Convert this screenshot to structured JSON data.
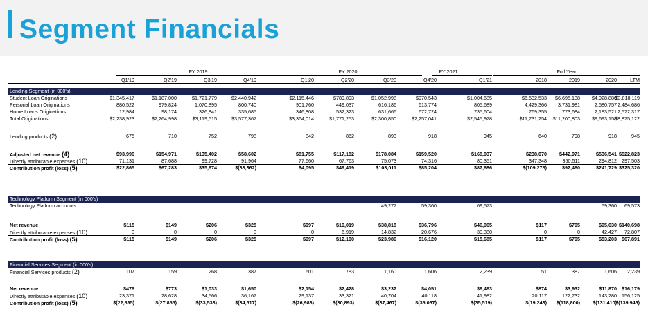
{
  "title": "Segment Financials",
  "periods": [
    {
      "label": "FY 2019"
    },
    {
      "label": "FY 2020"
    },
    {
      "label": "FY 2021"
    },
    {
      "label": "Full Year"
    }
  ],
  "columns": [
    "Q1'19",
    "Q2'19",
    "Q3'19",
    "Q4'19",
    "Q1'20",
    "Q2'20",
    "Q3'20",
    "Q4'20",
    "Q1'21",
    "2018",
    "2019",
    "2020",
    "LTM"
  ],
  "lending": {
    "header": "Lending Segment (in 000's)",
    "rows": [
      {
        "label": "Student Loan Originations",
        "values": [
          "$1,345,417",
          "$1,187,000",
          "$1,721,779",
          "$2,440,942",
          "$2,115,446",
          "$789,893",
          "$1,052,998",
          "$970,543",
          "$1,004,685",
          "$6,532,533",
          "$6,695,138",
          "$4,928,880",
          "$3,818,119"
        ]
      },
      {
        "label": "Personal Loan Originations",
        "values": [
          "880,522",
          "979,824",
          "1,070,895",
          "800,740",
          "901,760",
          "449,037",
          "616,186",
          "613,774",
          "805,689",
          "4,429,366",
          "3,731,981",
          "2,580,757",
          "2,484,686"
        ]
      },
      {
        "label": "Home Loans Originations",
        "values": [
          "12,984",
          "98,174",
          "326,841",
          "335,685",
          "346,808",
          "532,323",
          "631,666",
          "672,724",
          "735,604",
          "769,355",
          "773,684",
          "2,183,521",
          "2,572,317"
        ]
      },
      {
        "label": "Total Originations",
        "values": [
          "$2,238,923",
          "$2,264,998",
          "$3,119,515",
          "$3,577,367",
          "$3,364,014",
          "$1,771,253",
          "$2,300,850",
          "$2,257,041",
          "$2,545,978",
          "$11,731,254",
          "$11,200,803",
          "$9,693,158",
          "$8,875,122"
        ]
      },
      {
        "label": "Lending products",
        "note": "(2)",
        "values": [
          "675",
          "710",
          "752",
          "798",
          "842",
          "862",
          "893",
          "918",
          "945",
          "640",
          "798",
          "918",
          "945"
        ]
      },
      {
        "label": "Adjusted net revenue",
        "note": "(4)",
        "values": [
          "$93,996",
          "$154,971",
          "$135,402",
          "$58,602",
          "$81,755",
          "$117,182",
          "$178,084",
          "$159,520",
          "$168,037",
          "$238,070",
          "$442,971",
          "$536,541",
          "$622,823"
        ]
      },
      {
        "label": "Directly attributable expenses",
        "note": "(10)",
        "values": [
          "71,131",
          "87,688",
          "99,728",
          "91,964",
          "77,660",
          "67,763",
          "75,073",
          "74,316",
          "80,351",
          "347,348",
          "350,511",
          "294,812",
          "297,503"
        ]
      },
      {
        "label": "Contribution profit (loss)",
        "note": "(5)",
        "values": [
          "$22,865",
          "$67,283",
          "$35,674",
          "$(33,362)",
          "$4,095",
          "$49,419",
          "$103,011",
          "$85,204",
          "$87,686",
          "$(109,278)",
          "$92,460",
          "$241,729",
          "$325,320"
        ]
      }
    ]
  },
  "tech": {
    "header": "Technology Platform Segment (in 000's)",
    "rows": [
      {
        "label": "Technology Platform accounts",
        "values": [
          "",
          "",
          "",
          "",
          "",
          "",
          "49,277",
          "59,360",
          "69,573",
          "",
          "",
          "59,360",
          "69,573"
        ]
      },
      {
        "label": "Net revenue",
        "values": [
          "$115",
          "$149",
          "$206",
          "$325",
          "$997",
          "$19,019",
          "$38,818",
          "$36,796",
          "$46,065",
          "$117",
          "$795",
          "$95,630",
          "$140,698"
        ]
      },
      {
        "label": "Directly attributable expenses",
        "note": "(10)",
        "values": [
          "0",
          "0",
          "0",
          "0",
          "0",
          "6,919",
          "14,832",
          "20,676",
          "30,380",
          "0",
          "0",
          "42,427",
          "72,807"
        ]
      },
      {
        "label": "Contribution profit (loss)",
        "note": "(5)",
        "values": [
          "$115",
          "$149",
          "$206",
          "$325",
          "$997",
          "$12,100",
          "$23,986",
          "$16,120",
          "$15,685",
          "$117",
          "$795",
          "$53,203",
          "$67,891"
        ]
      }
    ]
  },
  "fin": {
    "header": "Financial Services Segment (in 000's)",
    "rows": [
      {
        "label": "Financial Services products",
        "note": "(2)",
        "values": [
          "107",
          "159",
          "268",
          "387",
          "601",
          "783",
          "1,160",
          "1,606",
          "2,239",
          "51",
          "387",
          "1,606",
          "2,239"
        ]
      },
      {
        "label": "Net revenue",
        "values": [
          "$476",
          "$773",
          "$1,033",
          "$1,650",
          "$2,154",
          "$2,428",
          "$3,237",
          "$4,051",
          "$6,463",
          "$874",
          "$3,932",
          "$11,870",
          "$16,179"
        ]
      },
      {
        "label": "Directly attributable expenses",
        "note": "(10)",
        "values": [
          "23,371",
          "28,628",
          "34,566",
          "36,167",
          "29,137",
          "33,321",
          "40,704",
          "40,118",
          "41,982",
          "20,117",
          "122,732",
          "143,280",
          "156,125"
        ]
      },
      {
        "label": "Contribution profit (loss)",
        "note": "(5)",
        "values": [
          "$(22,895)",
          "$(27,855)",
          "$(33,533)",
          "$(34,517)",
          "$(26,983)",
          "$(30,893)",
          "$(37,467)",
          "$(36,067)",
          "$(35,519)",
          "$(19,243)",
          "$(118,800)",
          "$(131,410)",
          "$(139,946)"
        ]
      }
    ]
  },
  "colors": {
    "accent": "#1aa1d8",
    "section_header": "#1b2350",
    "header_bg": "#f2f2f2"
  }
}
